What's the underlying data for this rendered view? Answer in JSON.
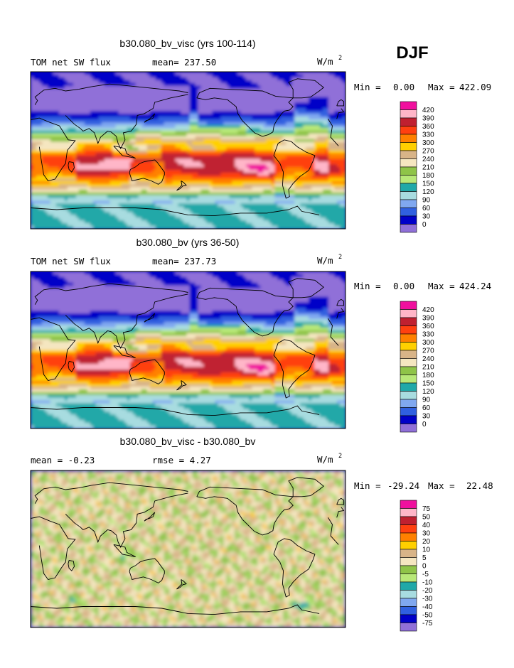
{
  "season": "DJF",
  "units_label": "W/m",
  "units_superscript": "2",
  "land_color": "#000000",
  "panels": [
    {
      "title": "b30.080_bv_visc (yrs 100-114)",
      "left_label": "TOM net SW flux",
      "mid_label": "mean= 237.50",
      "min_text": "Min =",
      "min_value": "0.00",
      "max_text": "Max =",
      "max_value": "422.09",
      "field": "abs",
      "levels": [
        "420",
        "390",
        "360",
        "330",
        "300",
        "270",
        "240",
        "210",
        "180",
        "150",
        "120",
        "90",
        "60",
        "30",
        "0"
      ],
      "colors": [
        "#f0109e",
        "#ffb6c8",
        "#c02030",
        "#ff4010",
        "#ff8000",
        "#ffd000",
        "#d8b488",
        "#f5e6c0",
        "#8fc448",
        "#b8e878",
        "#20a8a8",
        "#a8dce0",
        "#80a8f0",
        "#3060e0",
        "#0000c8",
        "#9070d8"
      ]
    },
    {
      "title": "b30.080_bv (yrs 36-50)",
      "left_label": "TOM net SW flux",
      "mid_label": "mean= 237.73",
      "min_text": "Min =",
      "min_value": "0.00",
      "max_text": "Max =",
      "max_value": "424.24",
      "field": "abs",
      "levels": [
        "420",
        "390",
        "360",
        "330",
        "300",
        "270",
        "240",
        "210",
        "180",
        "150",
        "120",
        "90",
        "60",
        "30",
        "0"
      ],
      "colors": [
        "#f0109e",
        "#ffb6c8",
        "#c02030",
        "#ff4010",
        "#ff8000",
        "#ffd000",
        "#d8b488",
        "#f5e6c0",
        "#8fc448",
        "#b8e878",
        "#20a8a8",
        "#a8dce0",
        "#80a8f0",
        "#3060e0",
        "#0000c8",
        "#9070d8"
      ]
    },
    {
      "title": "b30.080_bv_visc - b30.080_bv",
      "left_label": "mean =  -0.23",
      "mid_label": "rmse =   4.27",
      "min_text": "Min =",
      "min_value": "-29.24",
      "max_text": "Max =",
      "max_value": "22.48",
      "field": "diff",
      "levels": [
        "75",
        "50",
        "40",
        "30",
        "20",
        "10",
        "5",
        "0",
        "-5",
        "-10",
        "-20",
        "-30",
        "-40",
        "-50",
        "-75"
      ],
      "colors": [
        "#f0109e",
        "#ffb6c8",
        "#c02030",
        "#ff4010",
        "#ff8000",
        "#ffd000",
        "#d8b488",
        "#f5e6c0",
        "#8fc448",
        "#b8e878",
        "#20a8a8",
        "#a8dce0",
        "#80a8f0",
        "#3060e0",
        "#0000c8",
        "#9070d8"
      ]
    }
  ],
  "chart_data": {
    "type": "heatmap",
    "season": "DJF",
    "variable": "TOM net SW flux",
    "units": "W/m2",
    "maps": [
      {
        "title": "b30.080_bv_visc (yrs 100-114)",
        "mean": 237.5,
        "min": 0.0,
        "max": 422.09,
        "contour_levels": [
          0,
          30,
          60,
          90,
          120,
          150,
          180,
          210,
          240,
          270,
          300,
          330,
          360,
          390,
          420
        ]
      },
      {
        "title": "b30.080_bv (yrs 36-50)",
        "mean": 237.73,
        "min": 0.0,
        "max": 424.24,
        "contour_levels": [
          0,
          30,
          60,
          90,
          120,
          150,
          180,
          210,
          240,
          270,
          300,
          330,
          360,
          390,
          420
        ]
      },
      {
        "title": "b30.080_bv_visc - b30.080_bv",
        "mean": -0.23,
        "rmse": 4.27,
        "min": -29.24,
        "max": 22.48,
        "contour_levels": [
          -75,
          -50,
          -40,
          -30,
          -20,
          -10,
          -5,
          0,
          5,
          10,
          20,
          30,
          40,
          50,
          75
        ]
      }
    ]
  }
}
